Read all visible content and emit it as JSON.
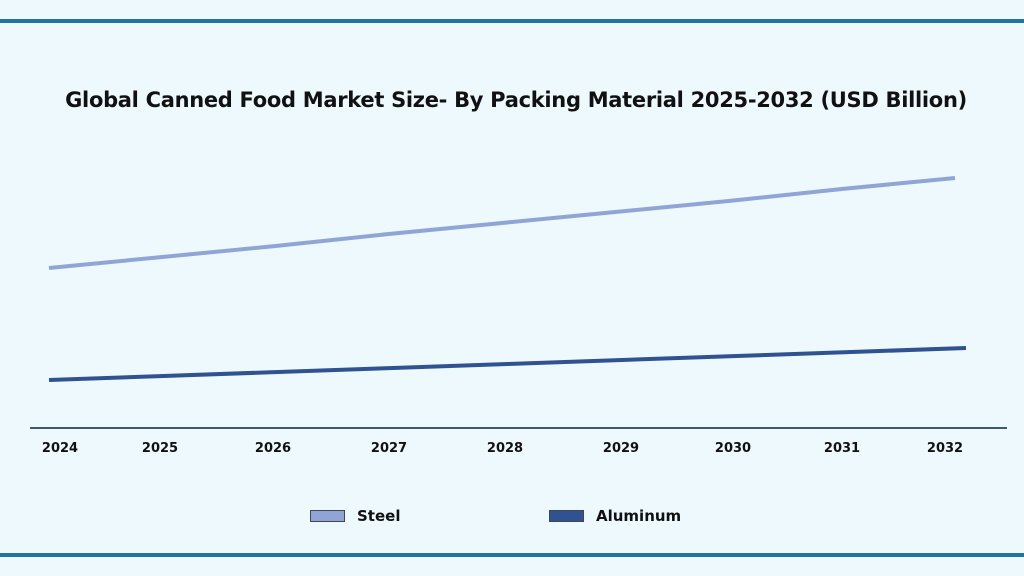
{
  "chart_data": {
    "type": "line",
    "title": "Global Canned Food Market Size- By Packing Material 2025-2032 (USD Billion)",
    "categories": [
      "2024",
      "2025",
      "2026",
      "2027",
      "2028",
      "2029",
      "2030",
      "2031",
      "2032"
    ],
    "series": [
      {
        "name": "Steel",
        "color": "#8fa5d6",
        "values": [
          160,
          171,
          182,
          194,
          205,
          216,
          227,
          239,
          250
        ]
      },
      {
        "name": "Aluminum",
        "color": "#2f5290",
        "values": [
          48,
          52,
          56,
          60,
          64,
          68,
          72,
          76,
          80
        ]
      }
    ],
    "ylim": [
      0,
      300
    ],
    "xlabel": "",
    "ylabel": "",
    "grid": false,
    "legend": "bottom"
  }
}
